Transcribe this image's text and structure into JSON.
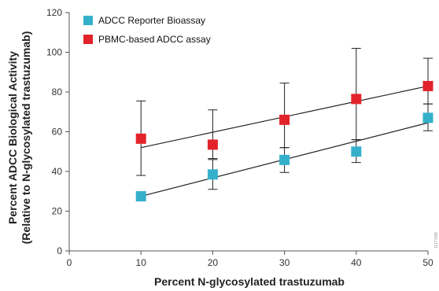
{
  "chart_data": {
    "type": "scatter",
    "x": [
      10,
      20,
      30,
      40,
      50
    ],
    "xlabel": "Percent N-glycosylated trastuzumab",
    "ylabel": [
      "Percent ADCC Biological Activity",
      "(Relative to N-glycosylated trastuzumab)"
    ],
    "xlim": [
      0,
      50
    ],
    "ylim": [
      0,
      120
    ],
    "xticks": [
      0,
      10,
      20,
      30,
      40,
      50
    ],
    "yticks": [
      0,
      20,
      40,
      60,
      80,
      100,
      120
    ],
    "grid": false,
    "legend_position": "top-left",
    "series": [
      {
        "name": "ADCC Reporter Bioassay",
        "color": "#35B0CB",
        "marker": "square",
        "y": [
          27.5,
          38.5,
          45.8,
          50,
          67
        ],
        "error_upper": [
          27.5,
          46,
          52,
          56,
          74
        ],
        "error_lower": [
          27.5,
          31,
          39.5,
          44.5,
          60.5
        ],
        "fit": [
          27.5,
          64.5
        ]
      },
      {
        "name": "PBMC-based ADCC assay",
        "color": "#E3232B",
        "marker": "square",
        "y": [
          56.5,
          53.5,
          66,
          76.5,
          83
        ],
        "error_upper": [
          75.5,
          71,
          84.5,
          102,
          97
        ],
        "error_lower": [
          38,
          46.5,
          52,
          56,
          74
        ],
        "fit": [
          52,
          83
        ]
      }
    ]
  },
  "side_code": "11177MB"
}
